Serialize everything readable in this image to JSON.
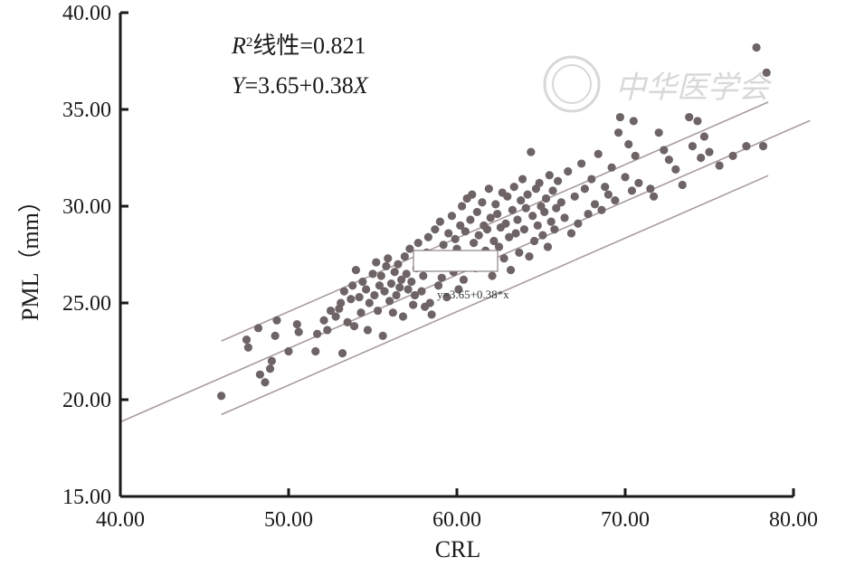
{
  "chart_data": {
    "type": "scatter",
    "xlabel": "CRL",
    "ylabel": "PML（mm）",
    "xlim": [
      40,
      80
    ],
    "ylim": [
      15,
      40
    ],
    "x_ticks": [
      "40.00",
      "50.00",
      "60.00",
      "70.00",
      "80.00"
    ],
    "y_ticks": [
      "15.00",
      "20.00",
      "25.00",
      "30.00",
      "35.00",
      "40.00"
    ],
    "grid": false,
    "annotations": {
      "r2_symbol": "R",
      "r2_sup": "2",
      "r2_text": "线性=0.821",
      "eq_y": "Y",
      "eq_text": "=3.65+0.38",
      "eq_x": "X",
      "fit_label": "y=3.65+0.38*x"
    },
    "fit_line": {
      "intercept": 3.65,
      "slope": 0.38,
      "x_range": [
        40,
        81
      ]
    },
    "prediction_band": {
      "offset": 1.9,
      "x_range": [
        46,
        78.5
      ]
    },
    "colors": {
      "points": "#6e6466",
      "lines": "#a89c9e",
      "axis": "#1a1a1a",
      "watermark": "#d8d8d8"
    },
    "watermark_text": "中华医学会",
    "points": [
      [
        46.0,
        20.2
      ],
      [
        47.5,
        23.1
      ],
      [
        47.6,
        22.7
      ],
      [
        48.2,
        23.7
      ],
      [
        48.3,
        21.3
      ],
      [
        48.6,
        20.9
      ],
      [
        48.9,
        21.6
      ],
      [
        49.0,
        22.0
      ],
      [
        49.2,
        23.3
      ],
      [
        49.3,
        24.1
      ],
      [
        50.0,
        22.5
      ],
      [
        50.5,
        23.9
      ],
      [
        50.6,
        23.5
      ],
      [
        51.6,
        22.5
      ],
      [
        51.7,
        23.4
      ],
      [
        52.1,
        24.1
      ],
      [
        52.3,
        23.6
      ],
      [
        52.5,
        24.6
      ],
      [
        52.8,
        24.3
      ],
      [
        53.0,
        24.7
      ],
      [
        53.1,
        25.0
      ],
      [
        53.2,
        22.4
      ],
      [
        53.3,
        25.6
      ],
      [
        53.5,
        24.0
      ],
      [
        53.7,
        25.2
      ],
      [
        53.8,
        25.9
      ],
      [
        53.9,
        23.8
      ],
      [
        54.0,
        26.7
      ],
      [
        54.2,
        25.3
      ],
      [
        54.3,
        24.5
      ],
      [
        54.4,
        26.1
      ],
      [
        54.6,
        25.7
      ],
      [
        54.7,
        23.6
      ],
      [
        54.8,
        25.0
      ],
      [
        55.0,
        26.5
      ],
      [
        55.1,
        25.4
      ],
      [
        55.2,
        27.1
      ],
      [
        55.3,
        24.6
      ],
      [
        55.4,
        25.9
      ],
      [
        55.5,
        26.4
      ],
      [
        55.6,
        23.3
      ],
      [
        55.7,
        25.6
      ],
      [
        55.8,
        26.9
      ],
      [
        55.9,
        27.3
      ],
      [
        56.0,
        25.1
      ],
      [
        56.1,
        26.0
      ],
      [
        56.2,
        24.5
      ],
      [
        56.3,
        26.6
      ],
      [
        56.4,
        25.4
      ],
      [
        56.5,
        27.0
      ],
      [
        56.6,
        25.8
      ],
      [
        56.7,
        26.2
      ],
      [
        56.8,
        24.3
      ],
      [
        56.9,
        27.4
      ],
      [
        57.0,
        26.5
      ],
      [
        57.1,
        25.7
      ],
      [
        57.2,
        27.8
      ],
      [
        57.3,
        26.1
      ],
      [
        57.4,
        24.9
      ],
      [
        57.5,
        25.4
      ],
      [
        57.6,
        26.8
      ],
      [
        57.7,
        28.1
      ],
      [
        57.8,
        27.3
      ],
      [
        57.9,
        25.6
      ],
      [
        58.0,
        26.4
      ],
      [
        58.1,
        24.8
      ],
      [
        58.2,
        27.6
      ],
      [
        58.3,
        28.4
      ],
      [
        58.4,
        25.0
      ],
      [
        58.5,
        24.4
      ],
      [
        58.6,
        26.9
      ],
      [
        58.7,
        28.8
      ],
      [
        58.8,
        27.2
      ],
      [
        58.9,
        25.9
      ],
      [
        59.0,
        29.2
      ],
      [
        59.1,
        26.3
      ],
      [
        59.2,
        28.0
      ],
      [
        59.3,
        27.5
      ],
      [
        59.4,
        25.3
      ],
      [
        59.5,
        28.6
      ],
      [
        59.6,
        27.0
      ],
      [
        59.7,
        29.5
      ],
      [
        59.8,
        26.6
      ],
      [
        59.9,
        28.3
      ],
      [
        60.0,
        27.8
      ],
      [
        60.1,
        25.7
      ],
      [
        60.2,
        29.0
      ],
      [
        60.3,
        30.0
      ],
      [
        60.4,
        26.2
      ],
      [
        60.5,
        28.7
      ],
      [
        60.6,
        30.4
      ],
      [
        60.7,
        27.4
      ],
      [
        60.8,
        29.3
      ],
      [
        60.9,
        30.6
      ],
      [
        61.0,
        28.1
      ],
      [
        61.1,
        26.8
      ],
      [
        61.2,
        29.7
      ],
      [
        61.3,
        28.5
      ],
      [
        61.4,
        27.1
      ],
      [
        61.5,
        30.2
      ],
      [
        61.6,
        29.0
      ],
      [
        61.7,
        27.7
      ],
      [
        61.8,
        28.8
      ],
      [
        61.9,
        30.9
      ],
      [
        62.0,
        29.4
      ],
      [
        62.1,
        26.4
      ],
      [
        62.2,
        28.2
      ],
      [
        62.3,
        30.1
      ],
      [
        62.4,
        29.6
      ],
      [
        62.5,
        27.9
      ],
      [
        62.6,
        28.9
      ],
      [
        62.7,
        30.7
      ],
      [
        62.8,
        27.3
      ],
      [
        62.9,
        29.1
      ],
      [
        63.0,
        30.5
      ],
      [
        63.1,
        28.4
      ],
      [
        63.2,
        26.7
      ],
      [
        63.3,
        29.8
      ],
      [
        63.4,
        31.0
      ],
      [
        63.5,
        28.6
      ],
      [
        63.6,
        29.3
      ],
      [
        63.7,
        27.6
      ],
      [
        63.8,
        30.3
      ],
      [
        63.9,
        31.4
      ],
      [
        64.0,
        28.8
      ],
      [
        64.1,
        29.9
      ],
      [
        64.2,
        30.6
      ],
      [
        64.3,
        27.4
      ],
      [
        64.4,
        32.8
      ],
      [
        64.5,
        29.5
      ],
      [
        64.6,
        28.2
      ],
      [
        64.7,
        30.9
      ],
      [
        64.8,
        29.0
      ],
      [
        64.9,
        31.2
      ],
      [
        65.0,
        30.0
      ],
      [
        65.1,
        28.5
      ],
      [
        65.2,
        29.7
      ],
      [
        65.3,
        30.4
      ],
      [
        65.4,
        27.9
      ],
      [
        65.5,
        31.6
      ],
      [
        65.6,
        29.2
      ],
      [
        65.7,
        30.8
      ],
      [
        65.8,
        28.8
      ],
      [
        65.9,
        29.9
      ],
      [
        66.0,
        31.3
      ],
      [
        66.2,
        30.2
      ],
      [
        66.4,
        29.4
      ],
      [
        66.6,
        31.8
      ],
      [
        66.8,
        28.6
      ],
      [
        67.0,
        30.5
      ],
      [
        67.2,
        29.1
      ],
      [
        67.4,
        32.2
      ],
      [
        67.6,
        30.9
      ],
      [
        67.8,
        29.6
      ],
      [
        68.0,
        31.4
      ],
      [
        68.2,
        30.1
      ],
      [
        68.4,
        32.7
      ],
      [
        68.6,
        29.8
      ],
      [
        68.8,
        31.0
      ],
      [
        69.0,
        30.6
      ],
      [
        69.2,
        32.0
      ],
      [
        69.4,
        30.3
      ],
      [
        69.6,
        33.8
      ],
      [
        69.7,
        34.6
      ],
      [
        70.0,
        31.5
      ],
      [
        70.2,
        33.2
      ],
      [
        70.4,
        30.8
      ],
      [
        70.5,
        34.4
      ],
      [
        70.6,
        32.6
      ],
      [
        70.8,
        31.2
      ],
      [
        71.5,
        30.9
      ],
      [
        71.7,
        30.5
      ],
      [
        72.0,
        33.8
      ],
      [
        72.3,
        32.9
      ],
      [
        72.6,
        32.4
      ],
      [
        73.0,
        31.9
      ],
      [
        73.4,
        31.1
      ],
      [
        73.8,
        34.6
      ],
      [
        74.0,
        33.1
      ],
      [
        74.3,
        34.4
      ],
      [
        74.5,
        32.5
      ],
      [
        74.7,
        33.6
      ],
      [
        75.0,
        32.8
      ],
      [
        75.6,
        32.1
      ],
      [
        76.4,
        32.6
      ],
      [
        77.2,
        33.1
      ],
      [
        77.8,
        38.2
      ],
      [
        78.2,
        33.1
      ],
      [
        78.4,
        36.9
      ]
    ]
  }
}
